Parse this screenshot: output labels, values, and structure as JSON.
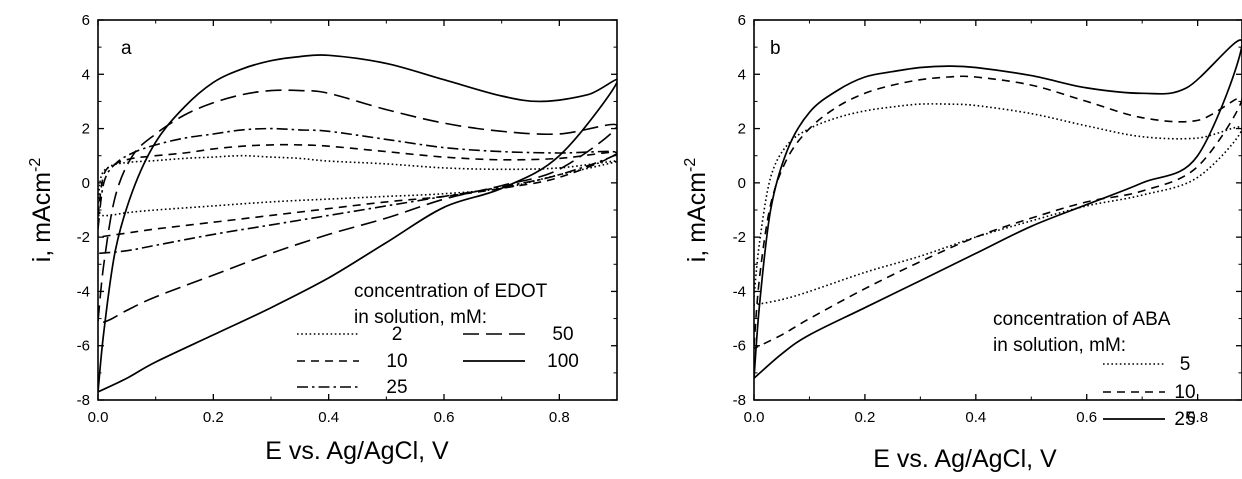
{
  "chart_data": [
    {
      "type": "line",
      "panel_label": "a",
      "xlabel": "E vs. Ag/AgCl, V",
      "ylabel": "i, mAcm",
      "ylabel_sup": "-2",
      "xlim": [
        0,
        0.9
      ],
      "ylim": [
        -8,
        6
      ],
      "xticks": [
        "0.0",
        "0.2",
        "0.4",
        "0.6",
        "0.8"
      ],
      "yticks": [
        "-8",
        "-6",
        "-4",
        "-2",
        "0",
        "2",
        "4",
        "6"
      ],
      "grid": false,
      "legend_title": [
        "concentration of EDOT",
        "in solution, mM:"
      ],
      "legend_placement": "bottom-right",
      "series": [
        {
          "name": "2",
          "dash": "dotted",
          "x": [
            0.0,
            0.005,
            0.02,
            0.05,
            0.1,
            0.15,
            0.2,
            0.25,
            0.3,
            0.35,
            0.4,
            0.5,
            0.6,
            0.7,
            0.8,
            0.9,
            0.8,
            0.7,
            0.6,
            0.5,
            0.4,
            0.3,
            0.2,
            0.1,
            0.05,
            0.02,
            0.0
          ],
          "y": [
            -0.9,
            0.2,
            0.6,
            0.75,
            0.82,
            0.9,
            0.95,
            1.0,
            0.95,
            0.9,
            0.8,
            0.7,
            0.55,
            0.5,
            0.55,
            0.8,
            0.3,
            -0.2,
            -0.4,
            -0.5,
            -0.6,
            -0.7,
            -0.85,
            -1.0,
            -1.1,
            -1.2,
            -1.2
          ]
        },
        {
          "name": "10",
          "dash": "dashed",
          "x": [
            0.0,
            0.01,
            0.03,
            0.06,
            0.1,
            0.15,
            0.2,
            0.25,
            0.3,
            0.35,
            0.4,
            0.5,
            0.6,
            0.7,
            0.8,
            0.9,
            0.8,
            0.7,
            0.6,
            0.5,
            0.4,
            0.3,
            0.2,
            0.1,
            0.05,
            0.0
          ],
          "y": [
            -1.2,
            0.3,
            0.7,
            0.9,
            1.0,
            1.1,
            1.25,
            1.35,
            1.4,
            1.4,
            1.35,
            1.15,
            0.95,
            0.85,
            0.9,
            1.1,
            0.2,
            -0.2,
            -0.5,
            -0.7,
            -0.95,
            -1.2,
            -1.45,
            -1.7,
            -1.85,
            -2.0
          ]
        },
        {
          "name": "25",
          "dash": "dashdot",
          "x": [
            0.0,
            0.01,
            0.03,
            0.06,
            0.1,
            0.15,
            0.2,
            0.25,
            0.3,
            0.35,
            0.4,
            0.5,
            0.6,
            0.7,
            0.8,
            0.9,
            0.8,
            0.7,
            0.6,
            0.5,
            0.4,
            0.3,
            0.2,
            0.1,
            0.05,
            0.0
          ],
          "y": [
            -1.7,
            0.0,
            0.7,
            1.1,
            1.4,
            1.65,
            1.8,
            1.95,
            2.0,
            1.95,
            1.9,
            1.6,
            1.3,
            1.15,
            1.1,
            1.1,
            0.3,
            -0.15,
            -0.5,
            -0.85,
            -1.2,
            -1.55,
            -1.9,
            -2.3,
            -2.5,
            -2.6
          ]
        },
        {
          "name": "50",
          "dash": "longdash",
          "x": [
            0.0,
            0.01,
            0.03,
            0.06,
            0.1,
            0.15,
            0.2,
            0.25,
            0.3,
            0.35,
            0.4,
            0.5,
            0.6,
            0.7,
            0.8,
            0.9,
            0.8,
            0.7,
            0.6,
            0.5,
            0.4,
            0.3,
            0.2,
            0.1,
            0.05,
            0.02,
            0.0
          ],
          "y": [
            -5.1,
            -3.0,
            -0.5,
            1.0,
            1.8,
            2.5,
            2.95,
            3.25,
            3.4,
            3.4,
            3.3,
            2.7,
            2.2,
            1.9,
            1.8,
            2.1,
            0.5,
            -0.1,
            -0.6,
            -1.3,
            -1.9,
            -2.6,
            -3.4,
            -4.2,
            -4.7,
            -5.05,
            -5.2
          ]
        },
        {
          "name": "100",
          "dash": "solid",
          "x": [
            0.0,
            0.01,
            0.03,
            0.06,
            0.1,
            0.15,
            0.2,
            0.25,
            0.3,
            0.35,
            0.4,
            0.5,
            0.6,
            0.7,
            0.77,
            0.85,
            0.9,
            0.8,
            0.7,
            0.6,
            0.5,
            0.4,
            0.3,
            0.2,
            0.1,
            0.05,
            0.0
          ],
          "y": [
            -7.7,
            -5.5,
            -2.5,
            -0.3,
            1.5,
            2.8,
            3.7,
            4.2,
            4.5,
            4.65,
            4.7,
            4.4,
            3.8,
            3.2,
            3.0,
            3.25,
            3.7,
            1.0,
            -0.2,
            -0.9,
            -2.2,
            -3.5,
            -4.6,
            -5.6,
            -6.6,
            -7.2,
            -7.7
          ]
        }
      ]
    },
    {
      "type": "line",
      "panel_label": "b",
      "xlabel": "E vs. Ag/AgCl, V",
      "ylabel": "i, mAcm",
      "ylabel_sup": "-2",
      "xlim": [
        0,
        0.88
      ],
      "ylim": [
        -8,
        6
      ],
      "xticks": [
        "0.0",
        "0.2",
        "0.4",
        "0.6",
        "0.8"
      ],
      "yticks": [
        "-8",
        "-6",
        "-4",
        "-2",
        "0",
        "2",
        "4",
        "6"
      ],
      "grid": false,
      "legend_title": [
        "concentration of ABA",
        "in solution, mM:"
      ],
      "legend_placement": "bottom-right",
      "series": [
        {
          "name": "5",
          "dash": "dotted",
          "x": [
            0.0,
            0.01,
            0.03,
            0.06,
            0.1,
            0.15,
            0.2,
            0.25,
            0.3,
            0.35,
            0.4,
            0.5,
            0.6,
            0.7,
            0.8,
            0.88,
            0.8,
            0.7,
            0.6,
            0.5,
            0.4,
            0.3,
            0.2,
            0.1,
            0.05,
            0.0
          ],
          "y": [
            -4.2,
            -2.2,
            0.2,
            1.4,
            2.0,
            2.4,
            2.65,
            2.8,
            2.9,
            2.9,
            2.85,
            2.55,
            2.1,
            1.7,
            1.65,
            2.0,
            0.2,
            -0.45,
            -0.85,
            -1.4,
            -2.0,
            -2.7,
            -3.3,
            -4.0,
            -4.3,
            -4.5
          ]
        },
        {
          "name": "10",
          "dash": "dashed",
          "x": [
            0.0,
            0.01,
            0.03,
            0.06,
            0.1,
            0.15,
            0.2,
            0.25,
            0.3,
            0.35,
            0.4,
            0.5,
            0.6,
            0.7,
            0.8,
            0.88,
            0.8,
            0.7,
            0.6,
            0.5,
            0.4,
            0.3,
            0.2,
            0.1,
            0.05,
            0.0
          ],
          "y": [
            -6.0,
            -3.5,
            -0.8,
            0.9,
            2.0,
            2.8,
            3.3,
            3.6,
            3.8,
            3.9,
            3.9,
            3.6,
            3.0,
            2.4,
            2.3,
            3.1,
            0.6,
            -0.3,
            -0.7,
            -1.3,
            -2.0,
            -2.9,
            -3.9,
            -5.0,
            -5.6,
            -6.1
          ]
        },
        {
          "name": "25",
          "dash": "solid",
          "x": [
            0.0,
            0.01,
            0.03,
            0.06,
            0.1,
            0.15,
            0.2,
            0.25,
            0.3,
            0.35,
            0.4,
            0.5,
            0.6,
            0.7,
            0.78,
            0.88,
            0.8,
            0.7,
            0.6,
            0.5,
            0.4,
            0.3,
            0.2,
            0.1,
            0.05,
            0.0
          ],
          "y": [
            -7.2,
            -4.5,
            -1.0,
            1.2,
            2.6,
            3.4,
            3.9,
            4.1,
            4.25,
            4.3,
            4.25,
            3.95,
            3.5,
            3.3,
            3.5,
            5.2,
            1.0,
            0.0,
            -0.8,
            -1.6,
            -2.6,
            -3.6,
            -4.6,
            -5.6,
            -6.3,
            -7.2
          ]
        }
      ]
    }
  ]
}
